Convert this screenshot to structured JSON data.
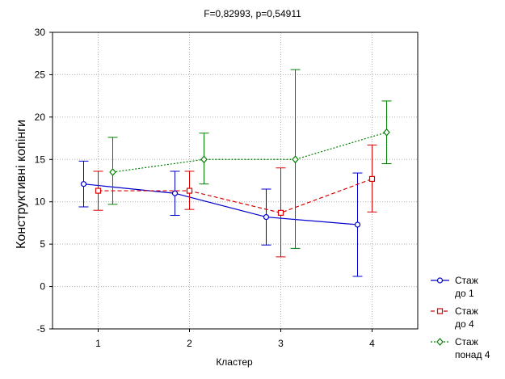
{
  "chart_data": {
    "type": "line",
    "title": "F=0,82993, p=0,54911",
    "xlabel": "Кластер",
    "ylabel": "Конструктивні копінги",
    "categories": [
      "1",
      "2",
      "3",
      "4"
    ],
    "ylim": [
      -5,
      30
    ],
    "yticks": [
      "-5",
      "0",
      "5",
      "10",
      "15",
      "20",
      "25",
      "30"
    ],
    "grid": true,
    "legend_position": "bottom-right",
    "series": [
      {
        "name": "Стаж до 1",
        "name_lines": [
          "Стаж",
          "до 1"
        ],
        "color": "#0000cc",
        "line_style": "solid",
        "marker": "circle",
        "values": [
          12.1,
          11.0,
          8.2,
          7.3
        ],
        "lower": [
          9.4,
          8.4,
          4.9,
          1.2
        ],
        "upper": [
          14.8,
          13.6,
          11.5,
          13.4
        ]
      },
      {
        "name": "Стаж до 4",
        "name_lines": [
          "Стаж",
          "до 4"
        ],
        "color": "#dd0000",
        "line_style": "dashed",
        "marker": "square",
        "values": [
          11.3,
          11.3,
          8.7,
          12.7
        ],
        "lower": [
          9.0,
          9.1,
          3.5,
          8.8
        ],
        "upper": [
          13.6,
          13.6,
          14.0,
          16.7
        ]
      },
      {
        "name": "Стаж понад 4",
        "name_lines": [
          "Стаж",
          "понад 4"
        ],
        "color": "#008000",
        "line_style": "dotted",
        "marker": "diamond",
        "values": [
          13.5,
          15.0,
          15.0,
          18.2
        ],
        "lower": [
          9.7,
          12.1,
          4.5,
          14.5
        ],
        "upper": [
          17.6,
          18.1,
          25.6,
          21.9
        ]
      }
    ]
  }
}
